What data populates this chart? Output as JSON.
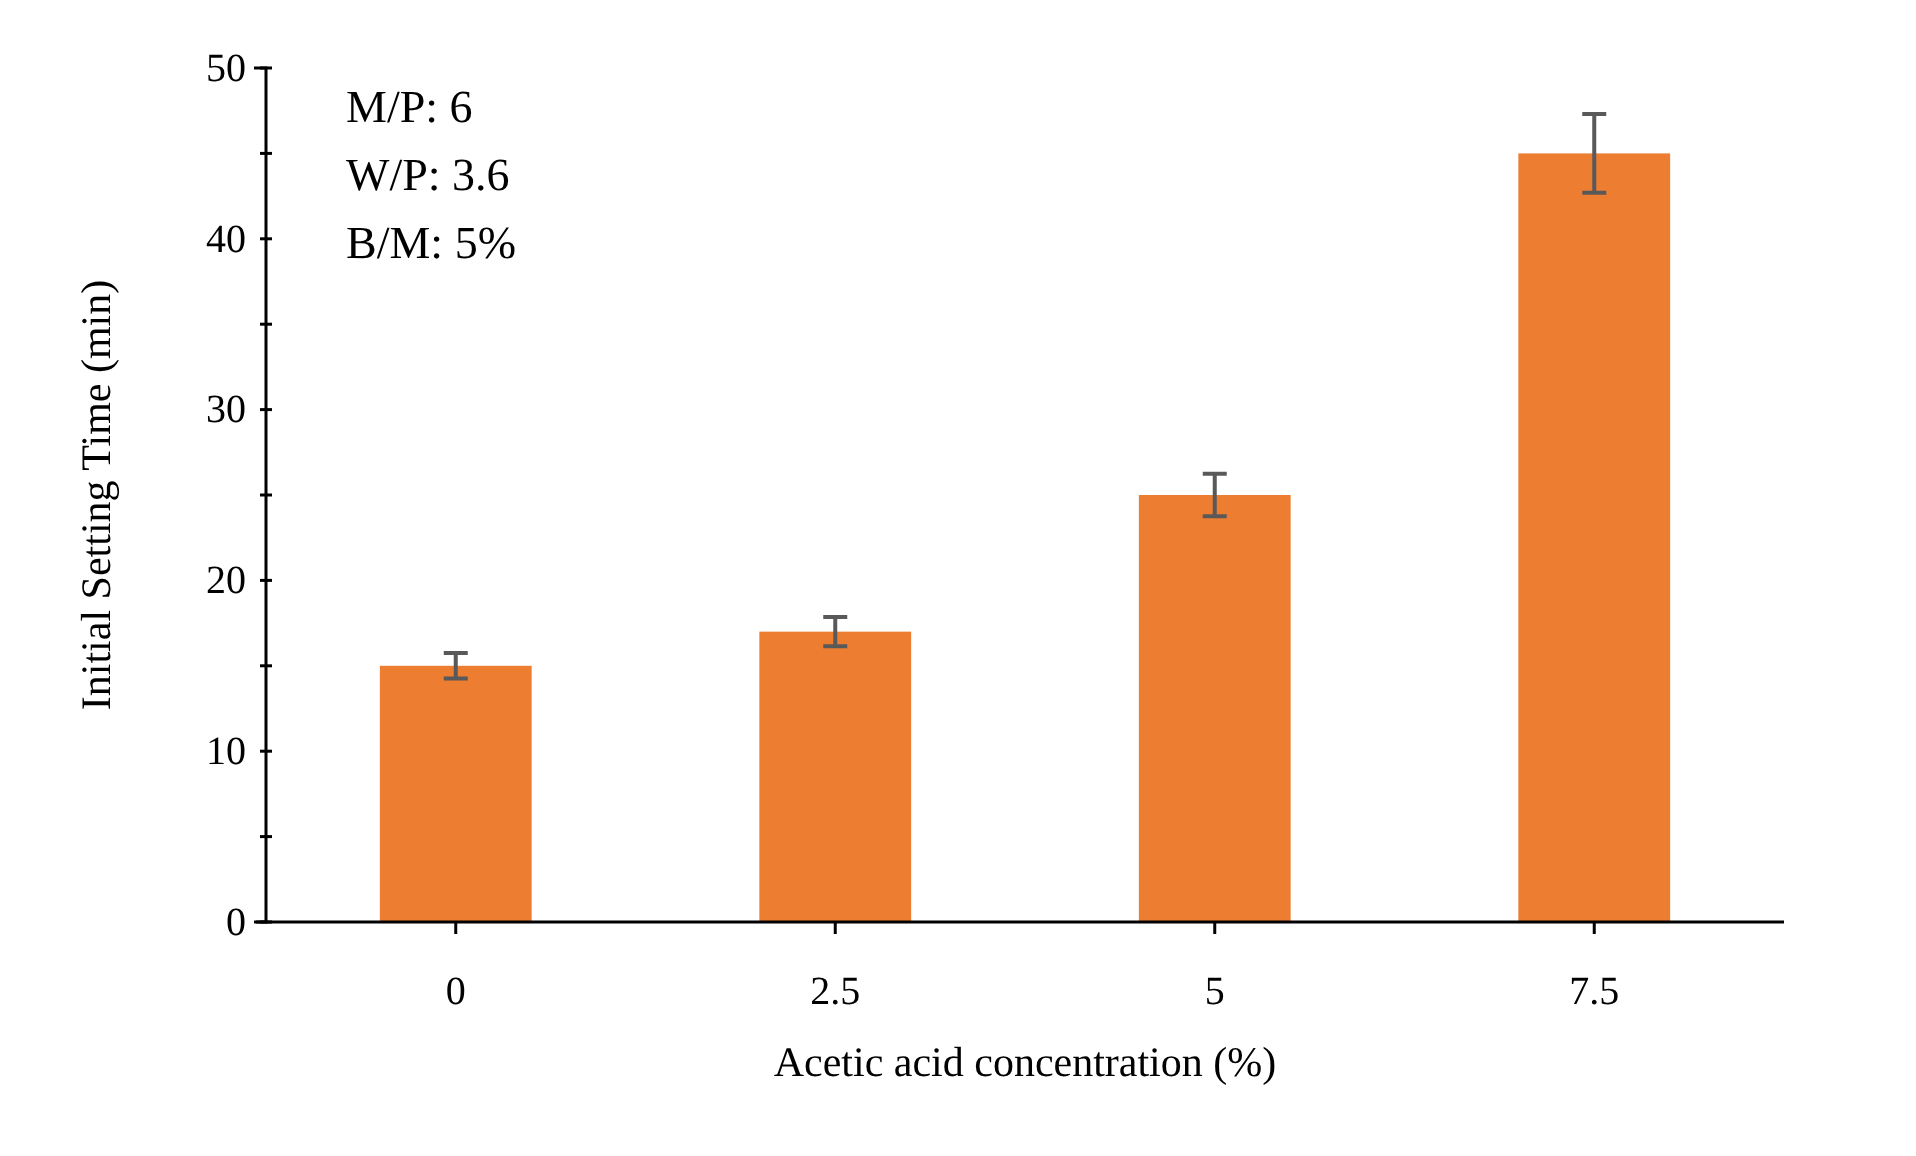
{
  "chart_data": {
    "type": "bar",
    "xlabel": "Acetic acid concentration (%)",
    "ylabel": "Initial Setting Time (min)",
    "categories": [
      "0",
      "2.5",
      "5",
      "7.5"
    ],
    "values": [
      15,
      17,
      25,
      45
    ],
    "errors": [
      0.75,
      0.85,
      1.25,
      2.3
    ],
    "color": "#ed7d31",
    "ylim": [
      0,
      50
    ],
    "yticks": [
      0,
      {
        "value": 5,
        "label": null
      },
      10,
      {
        "value": 15,
        "label": null
      },
      20,
      {
        "value": 25,
        "label": null
      },
      30,
      {
        "value": 35,
        "label": null
      },
      40,
      {
        "value": 45,
        "label": null
      },
      50
    ],
    "annotations": [
      "M/P: 6",
      "W/P: 3.6",
      "B/M: 5%"
    ],
    "grid": false
  }
}
